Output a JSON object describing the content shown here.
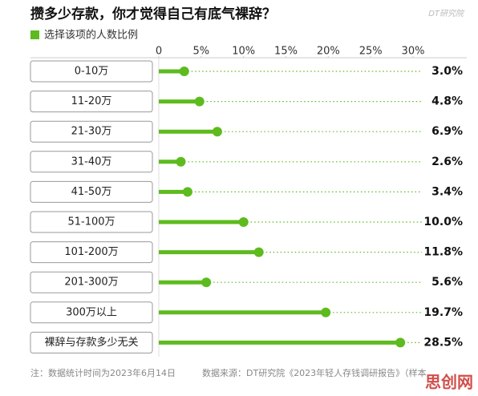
{
  "brand": "DT研究院",
  "watermark": "思创网",
  "chart_data": {
    "type": "lollipop",
    "title": "攒多少存款，你才觉得自己有底气裸辞？",
    "series": [
      {
        "name": "选择该项的人数比例",
        "color": "#5dbb1e",
        "values": [
          3.0,
          4.8,
          6.9,
          2.6,
          3.4,
          10.0,
          11.8,
          5.6,
          19.7,
          28.5
        ],
        "value_labels": [
          "3.0%",
          "4.8%",
          "6.9%",
          "2.6%",
          "3.4%",
          "10.0%",
          "11.8%",
          "5.6%",
          "19.7%",
          "28.5%"
        ]
      }
    ],
    "categories": [
      "0-10万",
      "11-20万",
      "21-30万",
      "31-40万",
      "41-50万",
      "51-100万",
      "101-200万",
      "201-300万",
      "300万以上",
      "裸辞与存款多少无关"
    ],
    "xlim": [
      0,
      30
    ],
    "xticks": [
      0,
      {
        "value": 5,
        "label": "5%"
      },
      {
        "value": 10,
        "label": "10%"
      },
      {
        "value": 15,
        "label": "15%"
      },
      {
        "value": 20,
        "label": "20%"
      },
      {
        "value": 25,
        "label": "25%"
      },
      {
        "value": 30,
        "label": "30%"
      }
    ],
    "notes": [
      "注：数据统计时间为2023年6月14日",
      "数据来源：DT研究院《2023年轻人存钱调研报告》（样本"
    ]
  }
}
